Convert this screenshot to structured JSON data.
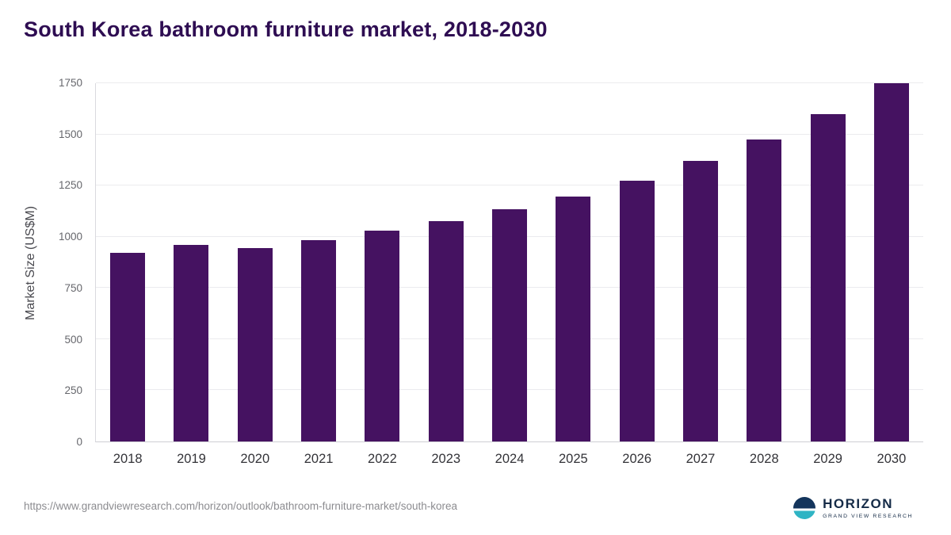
{
  "title": "South Korea bathroom furniture market, 2018-2030",
  "source_url": "https://www.grandviewresearch.com/horizon/outlook/bathroom-furniture-market/south-korea",
  "logo": {
    "name": "HORIZON",
    "subtitle": "GRAND VIEW RESEARCH"
  },
  "colors": {
    "bar": "#451261",
    "title": "#2e0d52",
    "grid": "#ebebee",
    "axis": "#d9d9de",
    "y_tick_text": "#66676c",
    "x_tick_text": "#333338",
    "logo_navy": "#14355c",
    "logo_teal": "#2fb4c4"
  },
  "chart_data": {
    "type": "bar",
    "title": "South Korea bathroom furniture market, 2018-2030",
    "categories": [
      "2018",
      "2019",
      "2020",
      "2021",
      "2022",
      "2023",
      "2024",
      "2025",
      "2026",
      "2027",
      "2028",
      "2029",
      "2030"
    ],
    "values": [
      920,
      960,
      945,
      985,
      1030,
      1075,
      1135,
      1195,
      1275,
      1370,
      1475,
      1600,
      1750
    ],
    "xlabel": "",
    "ylabel": "Market Size (US$M)",
    "ylim": [
      0,
      1750
    ],
    "yticks": [
      0,
      250,
      500,
      750,
      1000,
      1250,
      1500,
      1750
    ],
    "grid": "horizontal",
    "legend": "none",
    "bar_color": "#451261"
  }
}
